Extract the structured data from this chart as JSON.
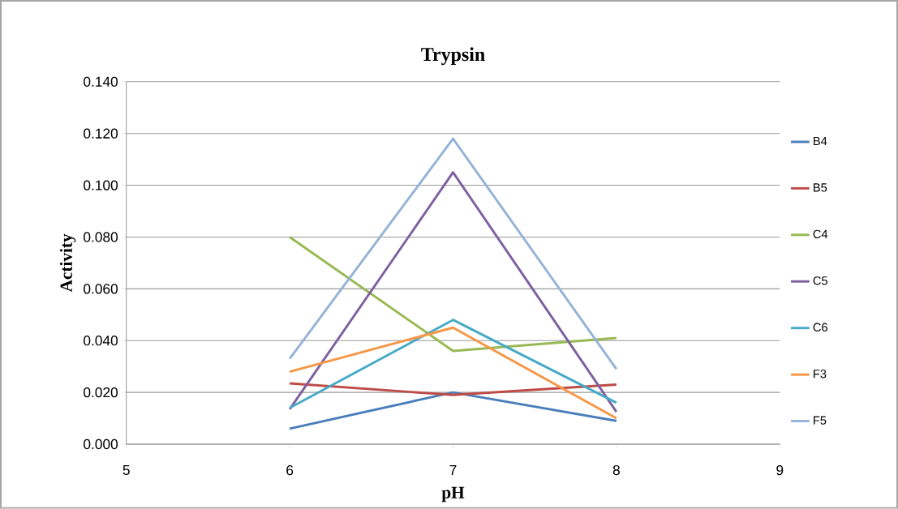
{
  "chart_data": {
    "type": "line",
    "title": "Trypsin",
    "xlabel": "pH",
    "ylabel": "Activity",
    "x": [
      6,
      7,
      8
    ],
    "series": [
      {
        "name": "B4",
        "color": "#4a7ebb",
        "values": [
          0.006,
          0.02,
          0.009
        ]
      },
      {
        "name": "B5",
        "color": "#be4b48",
        "values": [
          0.0235,
          0.019,
          0.023
        ]
      },
      {
        "name": "C4",
        "color": "#98b954",
        "values": [
          0.08,
          0.036,
          0.041
        ]
      },
      {
        "name": "C5",
        "color": "#7d60a0",
        "values": [
          0.0135,
          0.105,
          0.0125
        ]
      },
      {
        "name": "C6",
        "color": "#46aac5",
        "values": [
          0.014,
          0.048,
          0.016
        ]
      },
      {
        "name": "F3",
        "color": "#f79646",
        "values": [
          0.028,
          0.045,
          0.01
        ]
      },
      {
        "name": "F5",
        "color": "#95b3d7",
        "values": [
          0.033,
          0.118,
          0.029
        ]
      }
    ],
    "xlim": [
      5,
      9
    ],
    "xticks": [
      5,
      6,
      7,
      8,
      9
    ],
    "ylim": [
      0,
      0.14
    ],
    "yticks": [
      {
        "value": 0,
        "label": "0.000"
      },
      {
        "value": 0.02,
        "label": "0.020"
      },
      {
        "value": 0.04,
        "label": "0.040"
      },
      {
        "value": 0.06,
        "label": "0.060"
      },
      {
        "value": 0.08,
        "label": "0.080"
      },
      {
        "value": 0.1,
        "label": "0.100"
      },
      {
        "value": 0.12,
        "label": "0.120"
      },
      {
        "value": 0.14,
        "label": "0.140"
      }
    ],
    "grid": "y",
    "legend": "right",
    "line_style": "solid"
  }
}
